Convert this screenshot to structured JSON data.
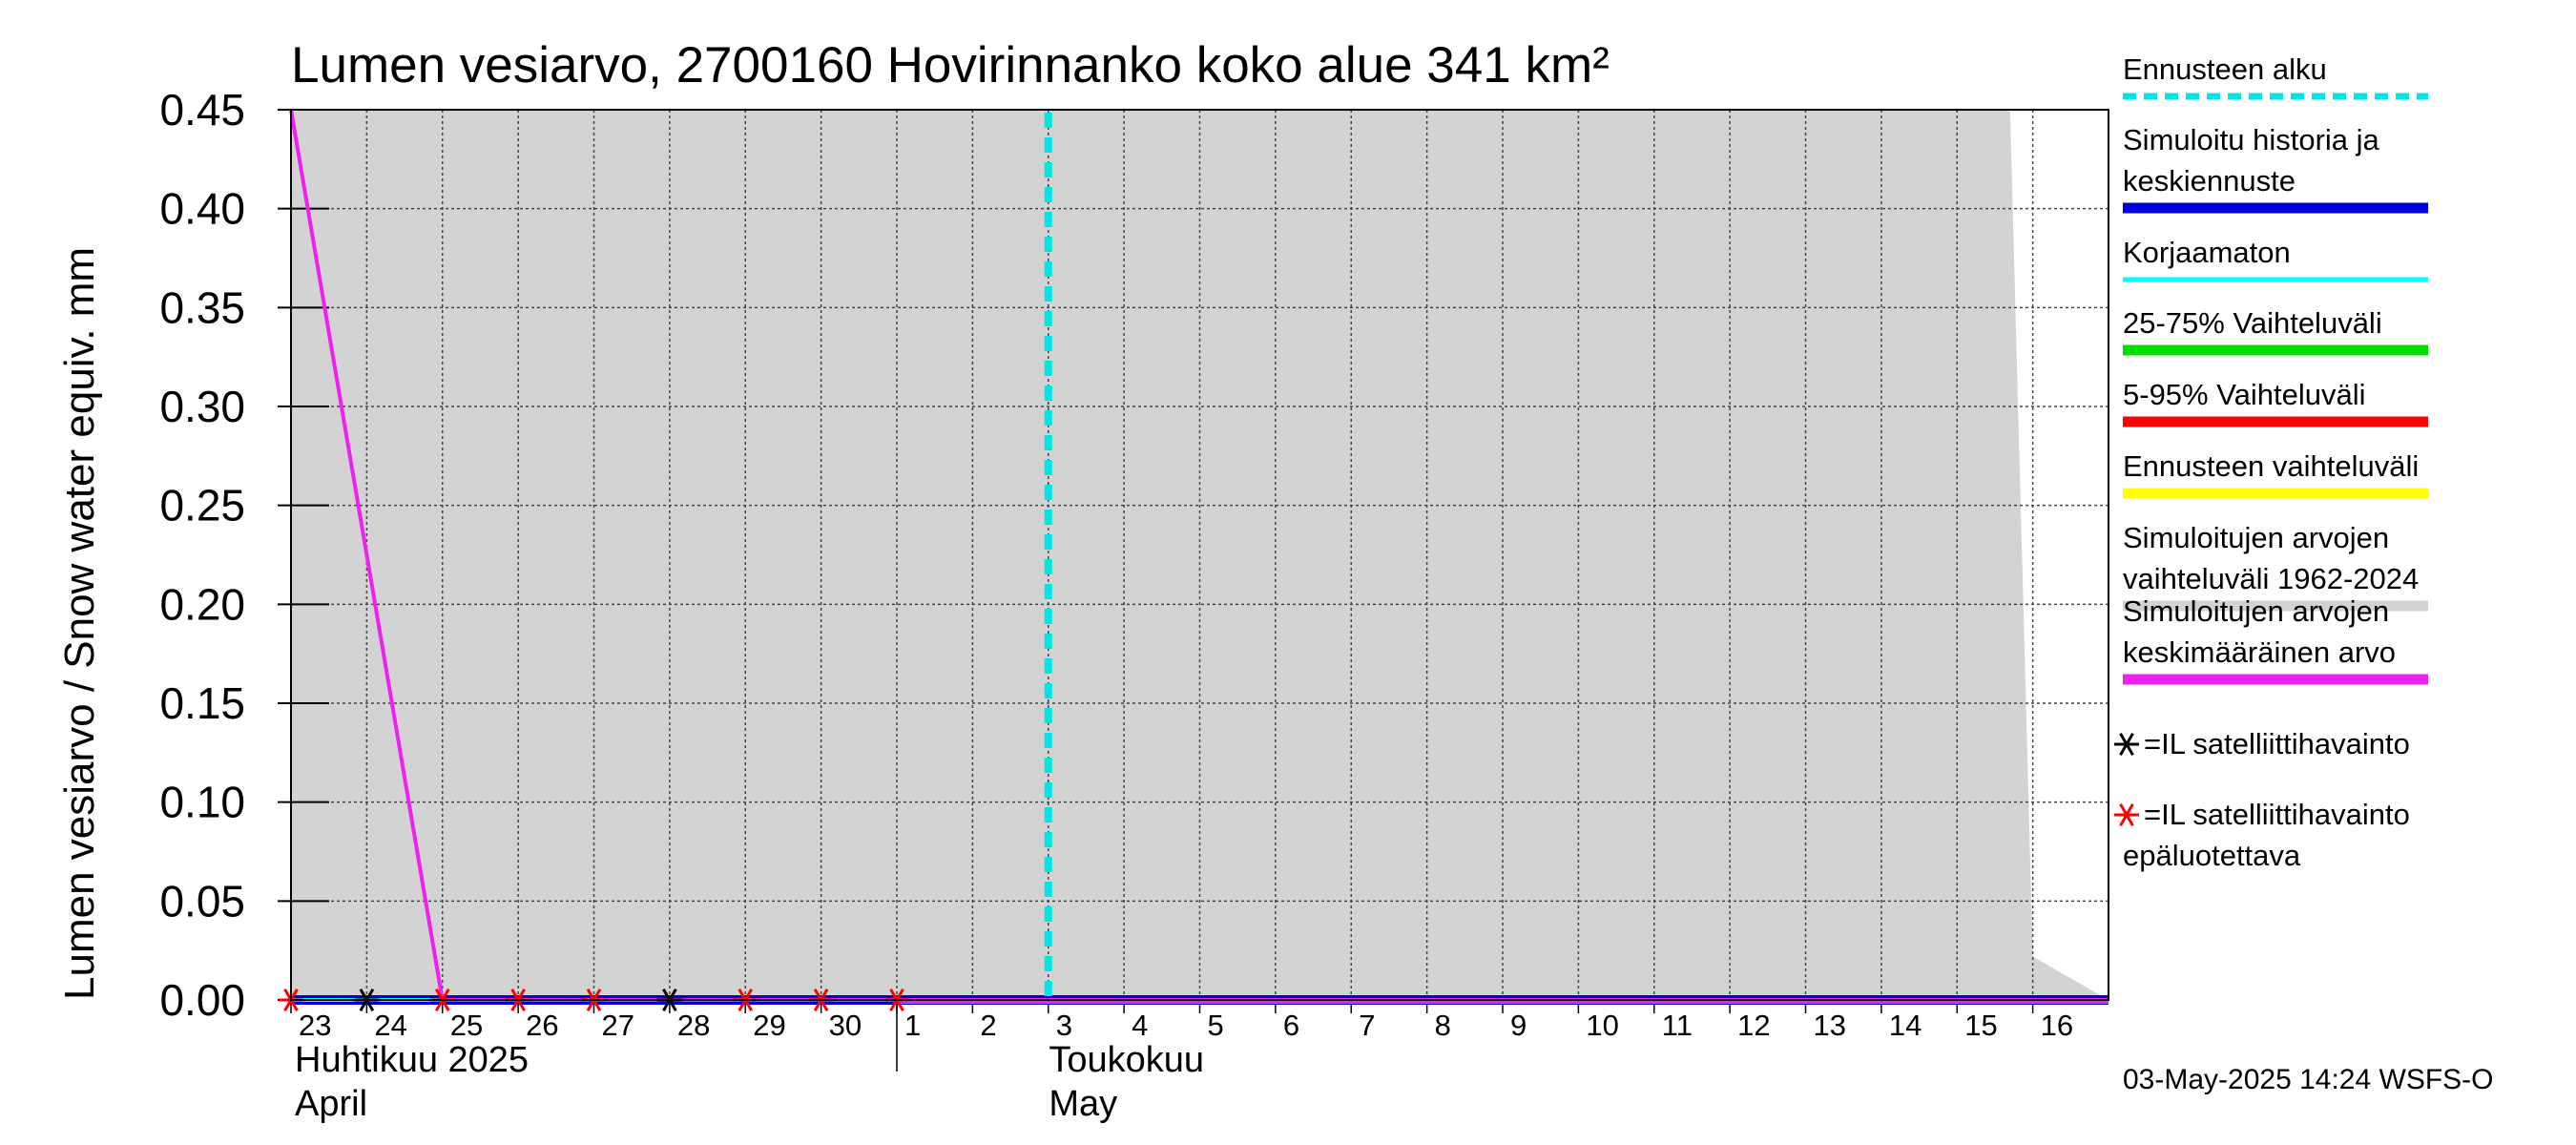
{
  "chart_data": {
    "type": "line",
    "title": "Lumen vesiarvo, 2700160 Hovirinnanko koko alue 341 km²",
    "ylabel": "Lumen vesiarvo / Snow water equiv.    mm",
    "ylim": [
      0,
      0.45
    ],
    "yticks": [
      "0.00",
      "0.05",
      "0.10",
      "0.15",
      "0.20",
      "0.25",
      "0.30",
      "0.35",
      "0.40",
      "0.45"
    ],
    "x_days": [
      {
        "label": "23",
        "day": 0
      },
      {
        "label": "24",
        "day": 1
      },
      {
        "label": "25",
        "day": 2
      },
      {
        "label": "26",
        "day": 3
      },
      {
        "label": "27",
        "day": 4
      },
      {
        "label": "28",
        "day": 5
      },
      {
        "label": "29",
        "day": 6
      },
      {
        "label": "30",
        "day": 7
      },
      {
        "label": "1",
        "day": 8
      },
      {
        "label": "2",
        "day": 9
      },
      {
        "label": "3",
        "day": 10
      },
      {
        "label": "4",
        "day": 11
      },
      {
        "label": "5",
        "day": 12
      },
      {
        "label": "6",
        "day": 13
      },
      {
        "label": "7",
        "day": 14
      },
      {
        "label": "8",
        "day": 15
      },
      {
        "label": "9",
        "day": 16
      },
      {
        "label": "10",
        "day": 17
      },
      {
        "label": "11",
        "day": 18
      },
      {
        "label": "12",
        "day": 19
      },
      {
        "label": "13",
        "day": 20
      },
      {
        "label": "14",
        "day": 21
      },
      {
        "label": "15",
        "day": 22
      },
      {
        "label": "16",
        "day": 23
      }
    ],
    "xlim_days": [
      0,
      24
    ],
    "months": [
      {
        "line1": "Huhtikuu  2025",
        "line2": "April",
        "day": 0
      },
      {
        "line1": "Toukokuu",
        "line2": "May",
        "day": 9
      }
    ],
    "forecast_start_day": 10.0,
    "historical_range_upper": [
      [
        0,
        0.45
      ],
      [
        22.7,
        0.45
      ],
      [
        23.0,
        0.022
      ],
      [
        24.0,
        0.0
      ]
    ],
    "historical_mean": [
      [
        0,
        0.45
      ],
      [
        2.0,
        0.0
      ],
      [
        24.0,
        0.0
      ]
    ],
    "simulated": [
      [
        0,
        0.0
      ],
      [
        24.0,
        0.0
      ]
    ],
    "uncorrected": [
      [
        0,
        0.0
      ],
      [
        8.0,
        0.0
      ]
    ],
    "satellite_obs": [
      1.0,
      5.0
    ],
    "satellite_obs_unreliable": [
      0.0,
      2.0,
      3.0,
      4.0,
      6.0,
      7.0,
      8.0
    ],
    "legend": [
      {
        "label": "Ennusteen alku",
        "color": "#00e5e5",
        "style": "dashed"
      },
      {
        "label": "Simuloitu historia ja",
        "label2": "keskiennuste",
        "color": "#0000dd",
        "style": "solid"
      },
      {
        "label": "Korjaamaton",
        "color": "#00ffff",
        "style": "solid"
      },
      {
        "label": "25-75% Vaihteluväli",
        "color": "#00dd00",
        "style": "solid"
      },
      {
        "label": "5-95% Vaihteluväli",
        "color": "#ff0000",
        "style": "solid"
      },
      {
        "label": "Ennusteen vaihteluväli",
        "color": "#ffff00",
        "style": "solid"
      },
      {
        "label": "Simuloitujen arvojen",
        "label2": "vaihteluväli 1962-2024",
        "color": "#d3d3d3",
        "style": "solid"
      },
      {
        "label": "Simuloitujen arvojen",
        "label2": "keskimääräinen arvo",
        "color": "#ee22ee",
        "style": "solid"
      },
      {
        "label": "=IL satelliittihavainto",
        "color": "#000000",
        "style": "star"
      },
      {
        "label": "=IL satelliittihavainto",
        "label2": "epäluotettava",
        "color": "#ff0000",
        "style": "star"
      }
    ],
    "footer": "03-May-2025 14:24 WSFS-O"
  },
  "colors": {
    "range_fill": "#d3d3d3",
    "mean_line": "#ee22ee",
    "sim_line": "#0000dd",
    "uncorrected_line": "#00ffff",
    "forecast_line": "#00e5e5",
    "obs_star": "#000000",
    "obs_star_unreliable": "#ff0000"
  }
}
